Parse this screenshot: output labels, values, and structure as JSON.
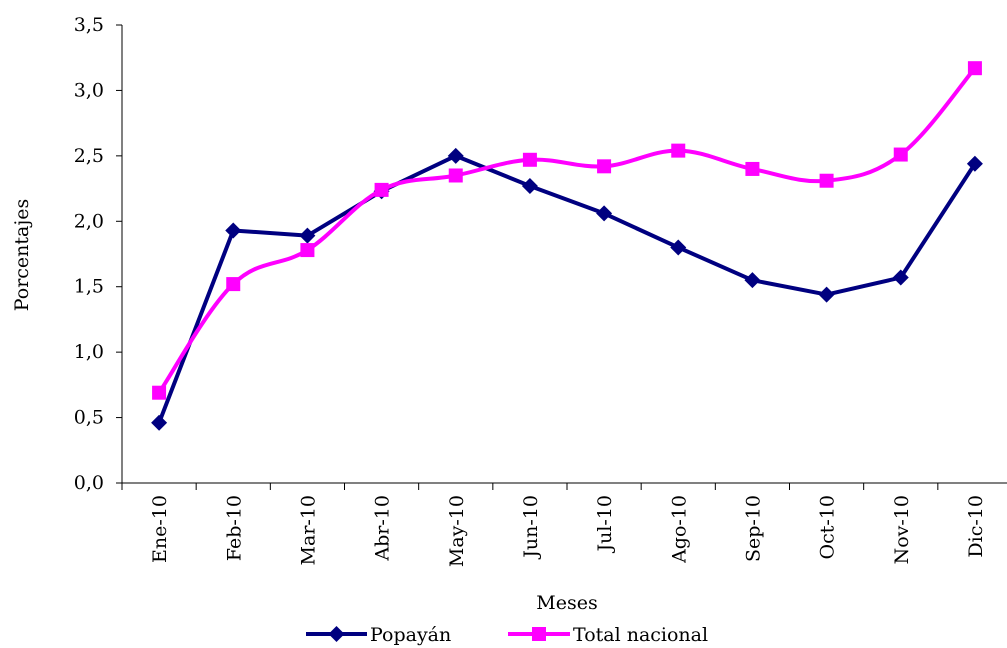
{
  "chart_data": {
    "type": "line",
    "categories": [
      "Ene-10",
      "Feb-10",
      "Mar-10",
      "Abr-10",
      "May-10",
      "Jun-10",
      "Jul-10",
      "Ago-10",
      "Sep-10",
      "Oct-10",
      "Nov-10",
      "Dic-10"
    ],
    "series": [
      {
        "name": "Popayán",
        "color": "#000080",
        "marker": "diamond",
        "smooth": false,
        "values": [
          0.46,
          1.93,
          1.89,
          2.23,
          2.5,
          2.27,
          2.06,
          1.8,
          1.55,
          1.44,
          1.57,
          2.44
        ]
      },
      {
        "name": "Total nacional",
        "color": "#FF00FF",
        "marker": "square",
        "smooth": true,
        "values": [
          0.69,
          1.52,
          1.78,
          2.24,
          2.35,
          2.47,
          2.42,
          2.54,
          2.4,
          2.31,
          2.51,
          3.17
        ]
      }
    ],
    "xlabel": "Meses",
    "ylabel": "Porcentajes",
    "ylim": [
      0,
      3.5
    ],
    "yticks": [
      "0,0",
      "0,5",
      "1,0",
      "1,5",
      "2,0",
      "2,5",
      "3,0",
      "3,5"
    ],
    "grid": false,
    "legend": "bottom"
  }
}
